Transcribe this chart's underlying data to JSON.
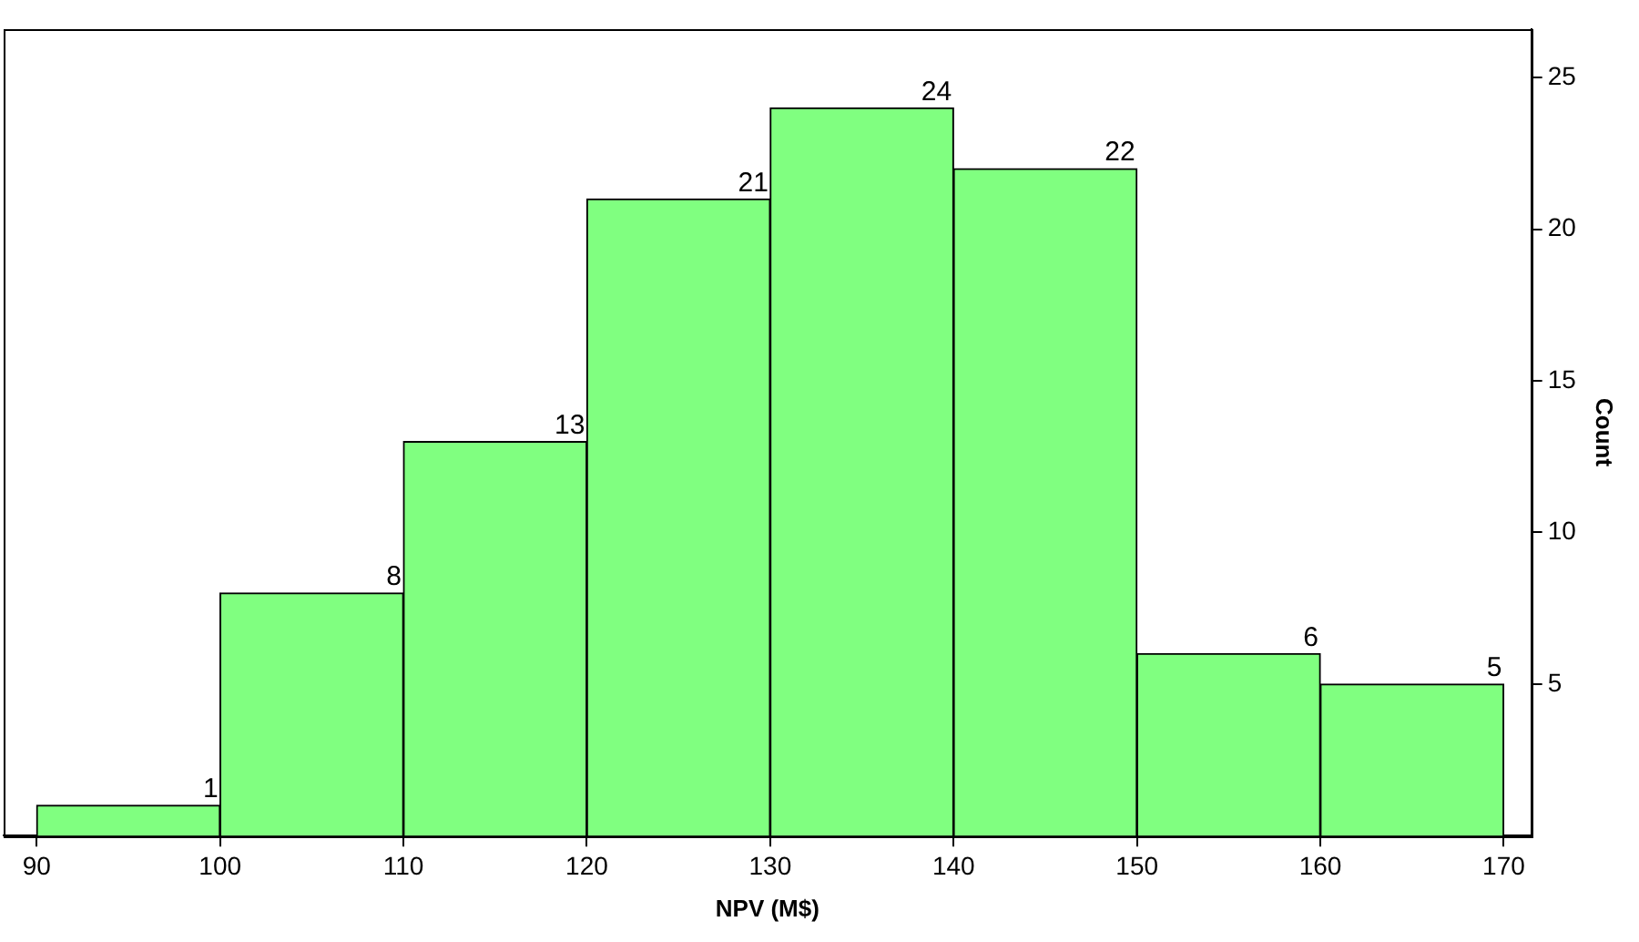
{
  "chart_data": {
    "type": "histogram",
    "xlabel": "NPV (M$)",
    "ylabel": "Count",
    "bins": [
      90,
      100,
      110,
      120,
      130,
      140,
      150,
      160,
      170
    ],
    "values": [
      1,
      8,
      13,
      21,
      24,
      22,
      6,
      5
    ],
    "color": "#80ff80",
    "xlim": [
      88.2,
      171.5
    ],
    "xticks": [
      90,
      100,
      110,
      120,
      130,
      140,
      150,
      160,
      170
    ],
    "ylim": [
      0,
      26.6
    ],
    "yticks": [
      5,
      10,
      15,
      20,
      25
    ],
    "data_labels": true,
    "grid": false,
    "legend": false
  }
}
